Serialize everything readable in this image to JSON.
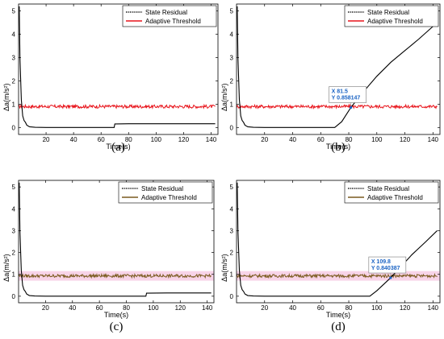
{
  "chart_data": [
    {
      "type": "line",
      "panel_label": "(a)",
      "xlabel": "Time(s)",
      "ylabel": "Δa(m/s²)",
      "xlim": [
        0,
        145
      ],
      "ylim": [
        -0.3,
        5.3
      ],
      "xticks": [
        20,
        40,
        60,
        80,
        100,
        120,
        140
      ],
      "yticks": [
        0,
        1,
        2,
        3,
        4,
        5
      ],
      "legend_position": "top-right",
      "series": [
        {
          "name": "State Residual",
          "color": "#000000",
          "style": "dotted",
          "x": [
            0.5,
            1,
            2,
            3,
            4,
            5,
            6,
            8,
            12,
            20,
            30,
            40,
            50,
            60,
            69.5,
            70,
            70.5,
            80,
            100,
            120,
            143
          ],
          "y": [
            5.2,
            3.0,
            1.2,
            0.5,
            0.3,
            0.22,
            0.1,
            0.03,
            0.01,
            0.0,
            0.0,
            0.0,
            0.0,
            0.0,
            0.0,
            0.15,
            0.15,
            0.16,
            0.16,
            0.16,
            0.16
          ]
        },
        {
          "name": "Adaptive Threshold",
          "color": "#e8141b",
          "x": [
            0,
            143
          ],
          "y": [
            0.9,
            0.9
          ],
          "noise_amplitude": 0.07
        }
      ]
    },
    {
      "type": "line",
      "panel_label": "(b)",
      "xlabel": "Time(s)",
      "ylabel": "Δa(m/s²)",
      "xlim": [
        0,
        145
      ],
      "ylim": [
        -0.3,
        5.3
      ],
      "xticks": [
        20,
        40,
        60,
        80,
        100,
        120,
        140
      ],
      "yticks": [
        0,
        1,
        2,
        3,
        4,
        5
      ],
      "legend_position": "top-right",
      "datatip": {
        "x_label": "X 81.5",
        "y_label": "Y 0.858147",
        "x": 81.5,
        "y": 0.858147
      },
      "series": [
        {
          "name": "State Residual",
          "color": "#000000",
          "style": "dotted",
          "x": [
            0.5,
            1,
            2,
            3,
            4,
            5,
            6,
            8,
            12,
            20,
            30,
            40,
            50,
            60,
            70,
            75,
            81.5,
            90,
            100,
            110,
            120,
            130,
            143
          ],
          "y": [
            5.2,
            3.0,
            1.2,
            0.5,
            0.3,
            0.22,
            0.1,
            0.03,
            0.01,
            0.0,
            0.0,
            0.0,
            0.0,
            0.0,
            0.0,
            0.25,
            0.86,
            1.5,
            2.2,
            2.8,
            3.3,
            3.8,
            4.5
          ]
        },
        {
          "name": "Adaptive Threshold",
          "color": "#e8141b",
          "x": [
            0,
            143
          ],
          "y": [
            0.9,
            0.9
          ],
          "noise_amplitude": 0.07
        }
      ]
    },
    {
      "type": "line",
      "panel_label": "(c)",
      "xlabel": "Time(s)",
      "ylabel": "Δa(m/s²)",
      "xlim": [
        0,
        145
      ],
      "ylim": [
        -0.3,
        5.3
      ],
      "xticks": [
        20,
        40,
        60,
        80,
        100,
        120,
        140
      ],
      "yticks": [
        0,
        1,
        2,
        3,
        4,
        5
      ],
      "legend_position": "top-right",
      "series": [
        {
          "name": "State Residual",
          "color": "#000000",
          "style": "dotted",
          "x": [
            0.5,
            1,
            2,
            3,
            4,
            5,
            6,
            8,
            12,
            20,
            40,
            60,
            80,
            94.5,
            95,
            95.5,
            110,
            125,
            143
          ],
          "y": [
            5.2,
            3.0,
            1.2,
            0.5,
            0.3,
            0.22,
            0.1,
            0.03,
            0.01,
            0.0,
            0.0,
            0.0,
            0.0,
            0.0,
            0.14,
            0.14,
            0.15,
            0.15,
            0.15
          ]
        },
        {
          "name": "Adaptive Threshold",
          "color": "#7a5a1e",
          "x": [
            0,
            143
          ],
          "y": [
            0.93,
            0.93
          ],
          "noise_amplitude": 0.07,
          "band_color": "#f3b8d8"
        }
      ]
    },
    {
      "type": "line",
      "panel_label": "(d)",
      "xlabel": "Time(s)",
      "ylabel": "Δa(m/s²)",
      "xlim": [
        0,
        145
      ],
      "ylim": [
        -0.3,
        5.3
      ],
      "xticks": [
        20,
        40,
        60,
        80,
        100,
        120,
        140
      ],
      "yticks": [
        0,
        1,
        2,
        3,
        4,
        5
      ],
      "legend_position": "top-right",
      "datatip": {
        "x_label": "X 109.8",
        "y_label": "Y 0.840387",
        "x": 109.8,
        "y": 0.840387
      },
      "series": [
        {
          "name": "State Residual",
          "color": "#000000",
          "style": "dotted",
          "x": [
            0.5,
            1,
            2,
            3,
            4,
            5,
            6,
            8,
            12,
            20,
            40,
            60,
            80,
            90,
            95,
            100,
            109.8,
            115,
            120,
            125,
            130,
            135,
            143
          ],
          "y": [
            5.2,
            3.0,
            1.2,
            0.5,
            0.3,
            0.22,
            0.1,
            0.03,
            0.01,
            0.0,
            0.0,
            0.0,
            0.0,
            0.0,
            0.0,
            0.25,
            0.84,
            1.2,
            1.55,
            1.9,
            2.2,
            2.5,
            3.0
          ]
        },
        {
          "name": "Adaptive Threshold",
          "color": "#7a5a1e",
          "x": [
            0,
            143
          ],
          "y": [
            0.93,
            0.93
          ],
          "noise_amplitude": 0.07,
          "band_color": "#f3b8d8"
        }
      ]
    }
  ]
}
